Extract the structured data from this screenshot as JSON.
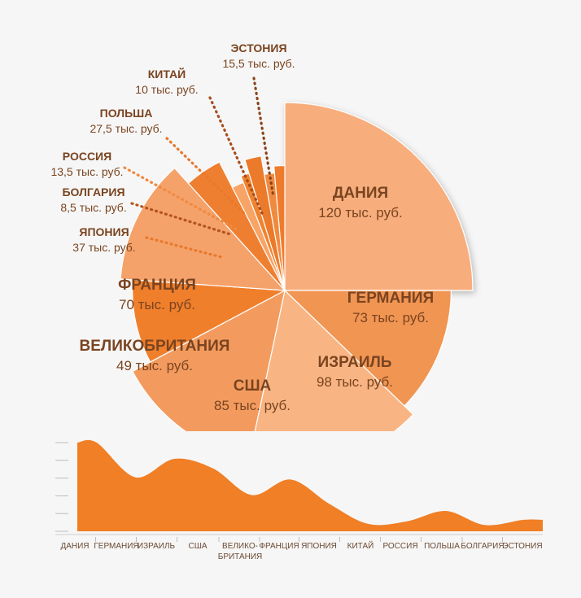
{
  "chart_data": [
    {
      "type": "pie",
      "title": "",
      "unit": "тыс. руб.",
      "slices": [
        {
          "name": "ДАНИЯ",
          "value": 120,
          "label": "120 тыс. руб."
        },
        {
          "name": "ГЕРМАНИЯ",
          "value": 73,
          "label": "73 тыс. руб."
        },
        {
          "name": "ИЗРАИЛЬ",
          "value": 98,
          "label": "98 тыс. руб."
        },
        {
          "name": "США",
          "value": 85,
          "label": "85 тыс. руб."
        },
        {
          "name": "ВЕЛИКОБРИТАНИЯ",
          "value": 49,
          "label": "49 тыс. руб."
        },
        {
          "name": "ФРАНЦИЯ",
          "value": 70,
          "label": "70 тыс. руб."
        },
        {
          "name": "ЯПОНИЯ",
          "value": 37,
          "label": "37 тыс. руб."
        },
        {
          "name": "БОЛГАРИЯ",
          "value": 8.5,
          "label": "8,5 тыс. руб."
        },
        {
          "name": "РОССИЯ",
          "value": 13.5,
          "label": "13,5 тыс. руб."
        },
        {
          "name": "ПОЛЬША",
          "value": 27.5,
          "label": "27,5 тыс. руб."
        },
        {
          "name": "КИТАЙ",
          "value": 10,
          "label": "10 тыс. руб."
        },
        {
          "name": "ЭСТОНИЯ",
          "value": 15.5,
          "label": "15,5 тыс. руб."
        }
      ],
      "colors": [
        "#f7ae7c",
        "#f19553",
        "#f8b583",
        "#f39b5e",
        "#f07f2c",
        "#f4a26a",
        "#ef7f30",
        "#f7a466",
        "#f0832f",
        "#ec7a2b",
        "#f08a3f",
        "#ee7c2c"
      ],
      "leader_colors": [
        "#e8782b",
        "#b45320",
        "#f08a3f",
        "#e8782b",
        "#a84d1c",
        "#8a4318"
      ]
    },
    {
      "type": "area",
      "categories": [
        "ДАНИЯ",
        "ГЕРМАНИЯ",
        "ИЗРАИЛЬ",
        "США",
        "ВЕЛИКО-\nБРИТАНИЯ",
        "ФРАНЦИЯ",
        "ЯПОНИЯ",
        "КИТАЙ",
        "РОССИЯ",
        "ПОЛЬША",
        "БОЛГАРИЯ",
        "ЭСТОНИЯ"
      ],
      "values": [
        120,
        73,
        98,
        85,
        49,
        70,
        37,
        10,
        13.5,
        27.5,
        8.5,
        15.5
      ],
      "ylim": [
        0,
        120
      ],
      "color": "#f07f26",
      "grid": false
    }
  ]
}
